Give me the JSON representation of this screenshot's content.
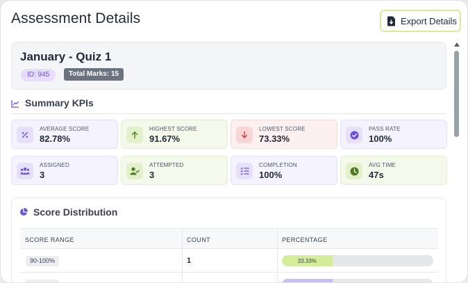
{
  "header": {
    "title": "Assessment Details",
    "export_label": "Export Details"
  },
  "quiz": {
    "title": "January - Quiz 1",
    "id_badge": "ID: 945",
    "marks_badge": "Total Marks: 15"
  },
  "kpi_section": {
    "title": "Summary KPIs",
    "items": [
      {
        "label": "AVERAGE SCORE",
        "value": "82.78%",
        "icon": "percent-icon",
        "tint": "purple"
      },
      {
        "label": "HIGHEST SCORE",
        "value": "91.67%",
        "icon": "arrow-up-icon",
        "tint": "green"
      },
      {
        "label": "LOWEST SCORE",
        "value": "73.33%",
        "icon": "arrow-down-icon",
        "tint": "red"
      },
      {
        "label": "PASS RATE",
        "value": "100%",
        "icon": "check-circle-icon",
        "tint": "purple"
      },
      {
        "label": "ASSIGNED",
        "value": "3",
        "icon": "users-icon",
        "tint": "purple"
      },
      {
        "label": "ATTEMPTED",
        "value": "3",
        "icon": "user-check-icon",
        "tint": "green"
      },
      {
        "label": "COMPLETION",
        "value": "100%",
        "icon": "checklist-icon",
        "tint": "purple"
      },
      {
        "label": "AVG TIME",
        "value": "47s",
        "icon": "clock-icon",
        "tint": "green"
      }
    ]
  },
  "distribution": {
    "title": "Score Distribution",
    "columns": [
      "SCORE RANGE",
      "COUNT",
      "PERCENTAGE"
    ],
    "rows": [
      {
        "range": "90-100%",
        "count": "1",
        "percentage": 33.33,
        "percentage_label": "33.33%"
      },
      {
        "range": "",
        "count": "",
        "percentage": 33.33,
        "percentage_label": ""
      }
    ]
  },
  "colors": {
    "accent_green": "#d4ed9b",
    "accent_purple": "#6d4fe0",
    "red": "#e05252"
  }
}
